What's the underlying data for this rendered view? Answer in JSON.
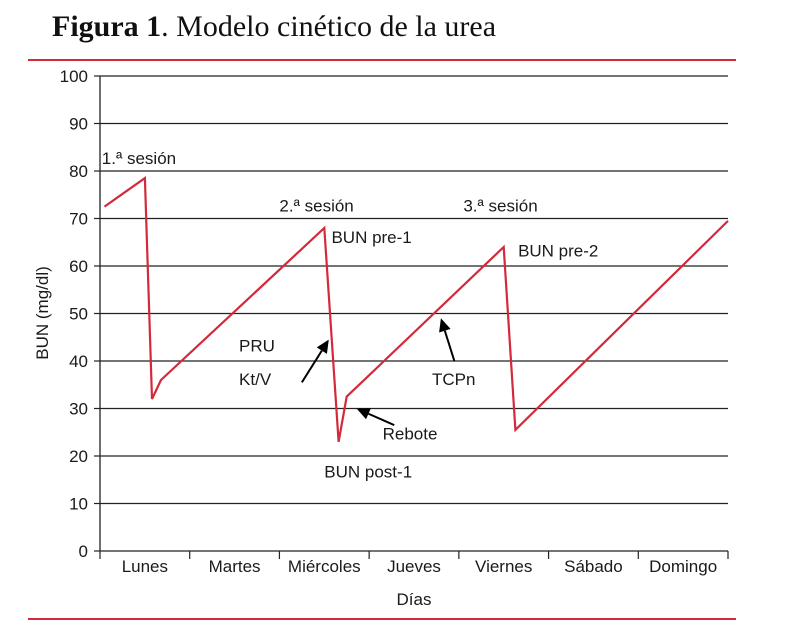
{
  "figure": {
    "label": "Figura 1",
    "title": ". Modelo cinético de la urea"
  },
  "colors": {
    "series": "#d3293a",
    "rule": "#d3293a",
    "grid": "#222222"
  },
  "chart_data": {
    "type": "line",
    "title": "Figura 1. Modelo cinético de la urea",
    "xlabel": "Días",
    "ylabel": "BUN (mg/dl)",
    "ylim": [
      0,
      100
    ],
    "yticks": [
      0,
      10,
      20,
      30,
      40,
      50,
      60,
      70,
      80,
      90,
      100
    ],
    "categories": [
      "Lunes",
      "Martes",
      "Miércoles",
      "Jueves",
      "Viernes",
      "Sábado",
      "Domingo"
    ],
    "xlim": [
      0,
      7
    ],
    "grid": true,
    "series": [
      {
        "x": [
          0.05,
          0.5,
          0.58,
          0.68,
          2.5,
          2.66,
          2.75,
          4.5,
          4.63,
          7.0
        ],
        "y": [
          72.5,
          78.5,
          32,
          36,
          68,
          23,
          32.5,
          64,
          25.5,
          69.5
        ]
      }
    ],
    "annotations": [
      {
        "text": "1.ª sesión",
        "x": 0.02,
        "y": 81.5
      },
      {
        "text": "2.ª sesión",
        "x": 2.0,
        "y": 71.5
      },
      {
        "text": "3.ª sesión",
        "x": 4.05,
        "y": 71.5
      },
      {
        "text": "BUN pre-1",
        "x": 2.58,
        "y": 64.8
      },
      {
        "text": "BUN pre-2",
        "x": 4.66,
        "y": 62
      },
      {
        "text": "PRU",
        "x": 1.55,
        "y": 42
      },
      {
        "text": "Kt/V",
        "x": 1.55,
        "y": 35
      },
      {
        "text": "TCPn",
        "x": 3.7,
        "y": 35
      },
      {
        "text": "Rebote",
        "x": 3.15,
        "y": 23.5
      },
      {
        "text": "BUN post-1",
        "x": 2.5,
        "y": 15.5
      }
    ],
    "arrows": [
      {
        "from": [
          2.25,
          35.5
        ],
        "to": [
          2.55,
          44.5
        ]
      },
      {
        "from": [
          3.28,
          26.5
        ],
        "to": [
          2.86,
          30
        ]
      },
      {
        "from": [
          3.95,
          40
        ],
        "to": [
          3.8,
          49
        ]
      }
    ]
  }
}
